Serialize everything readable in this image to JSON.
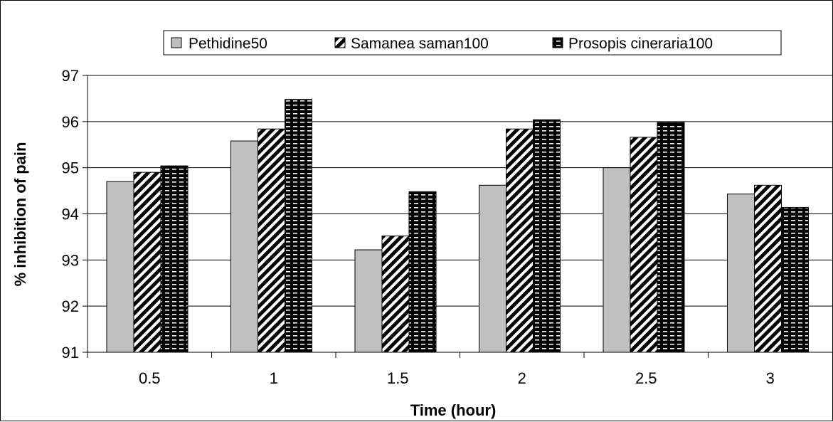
{
  "chart_data": {
    "type": "bar",
    "categories": [
      "0.5",
      "1",
      "1.5",
      "2",
      "2.5",
      "3"
    ],
    "series": [
      {
        "name": "Pethidine50",
        "values": [
          94.7,
          95.58,
          93.22,
          94.62,
          95.0,
          94.43
        ],
        "color": "#c0c0c0",
        "pattern": "solid"
      },
      {
        "name": "Samanea saman100",
        "values": [
          94.9,
          95.84,
          93.52,
          95.84,
          95.66,
          94.62
        ],
        "color": "#000000",
        "pattern": "diagonal-stripes"
      },
      {
        "name": "Prosopis cineraria100",
        "values": [
          95.04,
          96.48,
          94.48,
          96.04,
          95.98,
          94.14
        ],
        "color": "#000000",
        "pattern": "dashes"
      }
    ],
    "xlabel": "Time (hour)",
    "ylabel": "% inhibition of pain",
    "ylim": [
      91,
      97
    ],
    "yticks": [
      "91",
      "92",
      "93",
      "94",
      "95",
      "96",
      "97"
    ],
    "grid": true,
    "legend_position": "top"
  }
}
